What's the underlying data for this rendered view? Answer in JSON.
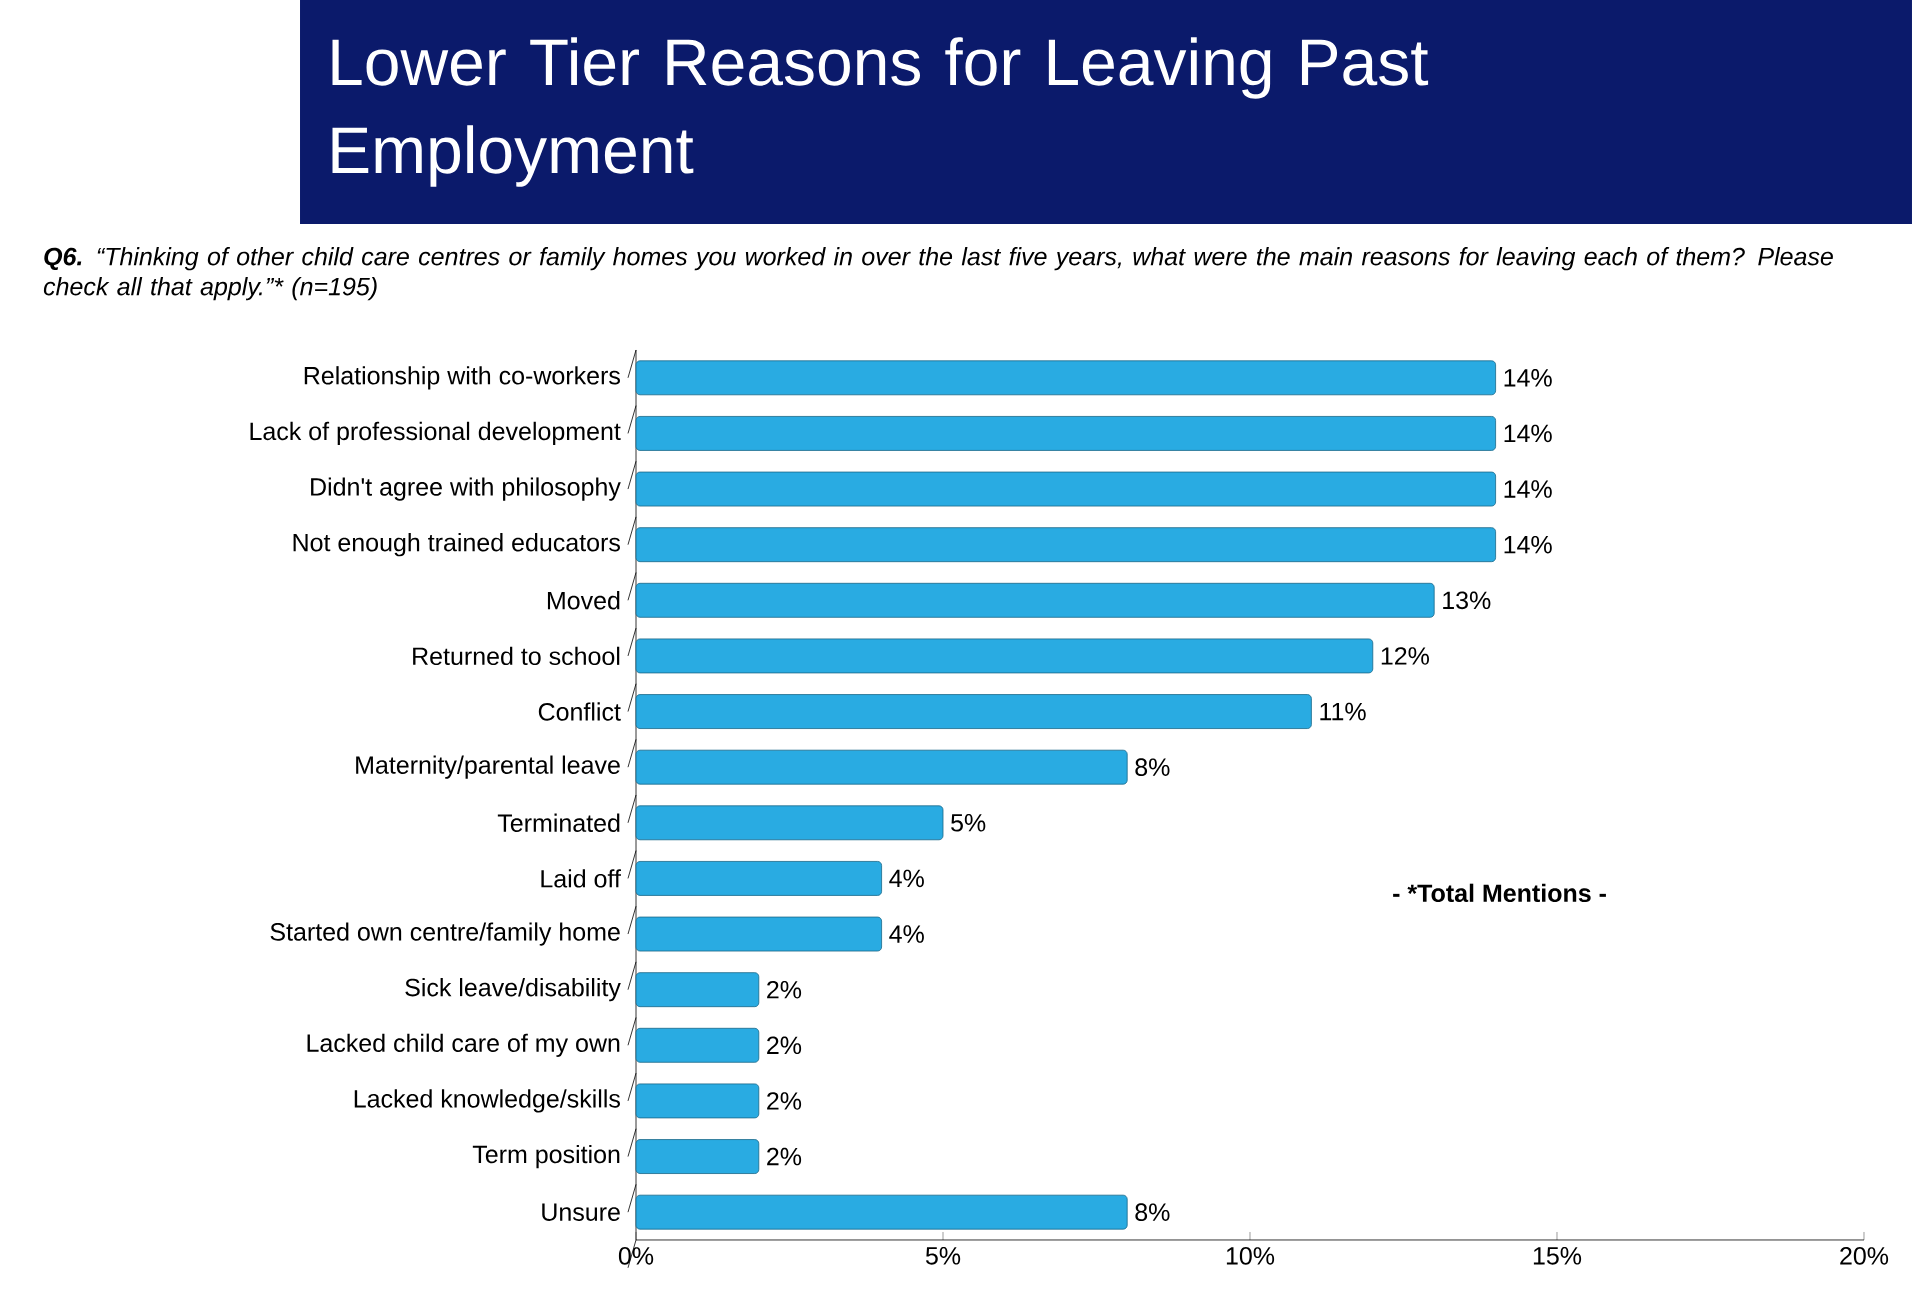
{
  "chart_data": {
    "type": "bar",
    "orientation": "horizontal",
    "title": "Lower Tier Reasons for Leaving Past Employment",
    "subtitle": "**Q6.** “Thinking of other child care centres or family homes you worked in over the last five years, what were the main reasons for leaving each of them? Please check all that apply.”* (n=195)",
    "categories": [
      "Relationship with co-workers",
      "Lack of professional development",
      "Didn't agree with philosophy",
      "Not enough trained educators",
      "Moved",
      "Returned to school",
      "Conflict",
      "Maternity/parental leave",
      "Terminated",
      "Laid off",
      "Started own centre/family home",
      "Sick leave/disability",
      "Lacked child care of my own",
      "Lacked knowledge/skills",
      "Term position",
      "Unsure"
    ],
    "values": [
      14,
      14,
      14,
      14,
      13,
      12,
      11,
      8,
      5,
      4,
      4,
      2,
      2,
      2,
      2,
      8
    ],
    "value_labels": [
      "14%",
      "14%",
      "14%",
      "14%",
      "13%",
      "12%",
      "11%",
      "8%",
      "5%",
      "4%",
      "4%",
      "2%",
      "2%",
      "2%",
      "2%",
      "8%"
    ],
    "color": "#29abe2",
    "xlim": [
      0,
      20
    ],
    "xticks": [
      {
        "value": 0,
        "label": "0%"
      },
      {
        "value": 5,
        "label": "5%"
      },
      {
        "value": 10,
        "label": "10%"
      },
      {
        "value": 15,
        "label": "15%"
      },
      {
        "value": 20,
        "label": "20%"
      }
    ],
    "annotations": [
      "- *Total Mentions -"
    ]
  }
}
